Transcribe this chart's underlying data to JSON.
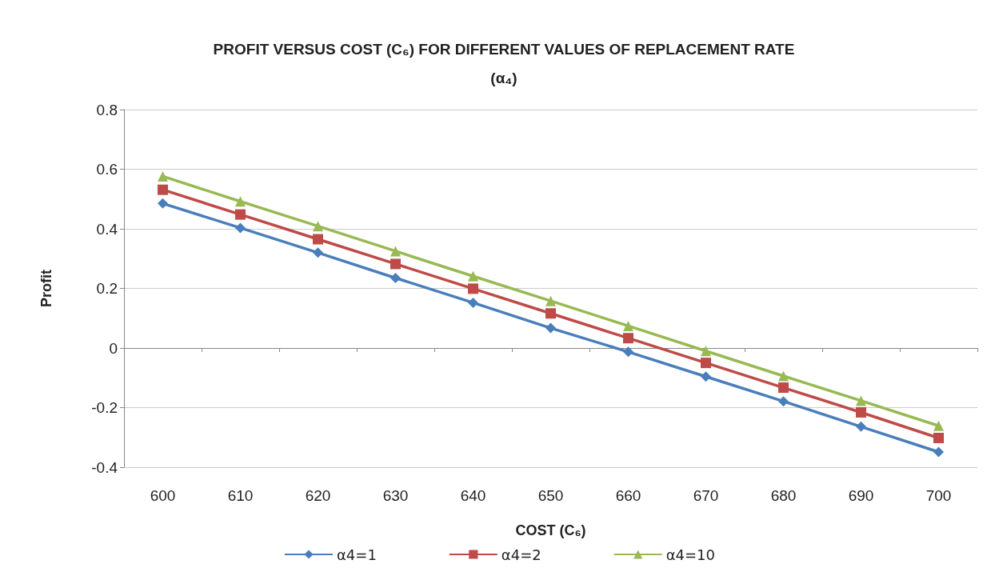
{
  "chart_data": {
    "type": "line",
    "title": "PROFIT VERSUS COST (C₆) FOR DIFFERENT VALUES OF REPLACEMENT RATE\n(α₄)",
    "xlabel": "COST (C₆)",
    "ylabel": "Profit",
    "categories": [
      "600",
      "610",
      "620",
      "630",
      "640",
      "650",
      "660",
      "670",
      "680",
      "690",
      "700"
    ],
    "series": [
      {
        "name": "α4=1",
        "color": "#4a7ebb",
        "marker": "diamond",
        "values": [
          0.485,
          0.403,
          0.32,
          0.235,
          0.152,
          0.067,
          -0.013,
          -0.096,
          -0.179,
          -0.264,
          -0.349
        ]
      },
      {
        "name": "α4=2",
        "color": "#be4b48",
        "marker": "square",
        "values": [
          0.531,
          0.448,
          0.365,
          0.282,
          0.199,
          0.116,
          0.033,
          -0.05,
          -0.133,
          -0.216,
          -0.302
        ]
      },
      {
        "name": "α4=10",
        "color": "#98b954",
        "marker": "triangle",
        "values": [
          0.576,
          0.492,
          0.409,
          0.325,
          0.241,
          0.158,
          0.074,
          -0.01,
          -0.094,
          -0.177,
          -0.261
        ]
      }
    ],
    "ylim": [
      -0.4,
      0.8
    ],
    "yticks": [
      -0.4,
      -0.2,
      0,
      0.2,
      0.4,
      0.6,
      0.8
    ],
    "grid": "y",
    "legend": "bottom",
    "line_style": "solid"
  }
}
